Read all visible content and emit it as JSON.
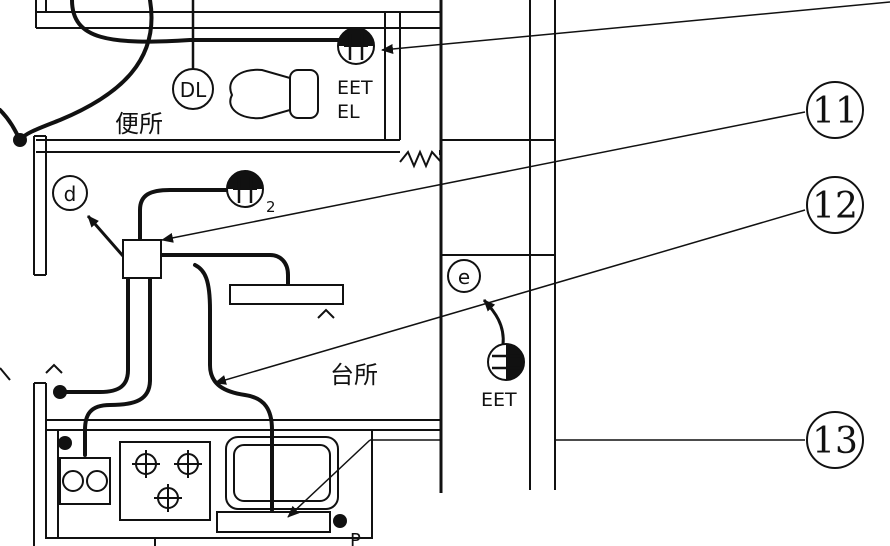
{
  "rooms": {
    "toilet": "便所",
    "kitchen": "台所"
  },
  "symbols": {
    "dl": "DL",
    "d": "d",
    "e": "e",
    "eet_el_line1": "EET",
    "eet_el_line2": "EL",
    "outlet_sub": "2",
    "eet_kitchen": "EET",
    "p": "P"
  },
  "callouts": [
    "11",
    "12",
    "13"
  ],
  "colors": {
    "ink": "#111111",
    "paper": "#ffffff"
  }
}
